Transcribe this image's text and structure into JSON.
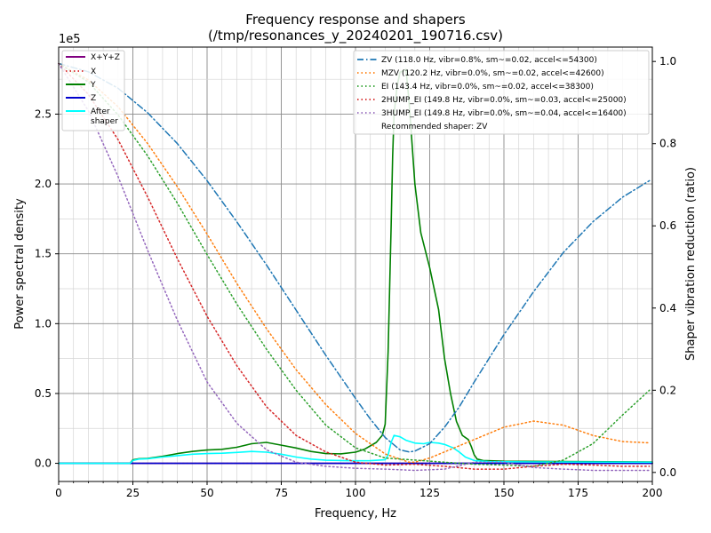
{
  "chart_data": {
    "type": "line",
    "title": "Frequency response and shapers",
    "subtitle": "(/tmp/resonances_y_20240201_190716.csv)",
    "xlabel": "Frequency, Hz",
    "ylabel": "Power spectral density",
    "y2label": "Shaper vibration reduction (ratio)",
    "y_multiplier_label": "1e5",
    "xlim": [
      0,
      200
    ],
    "ylim": [
      -0.13,
      2.98
    ],
    "y2lim": [
      -0.022,
      1.035
    ],
    "x_ticks": [
      0,
      25,
      50,
      75,
      100,
      125,
      150,
      175,
      200
    ],
    "x_tick_labels": [
      "0",
      "25",
      "50",
      "75",
      "100",
      "125",
      "150",
      "175",
      "200"
    ],
    "y_ticks": [
      0,
      0.5,
      1.0,
      1.5,
      2.0,
      2.5
    ],
    "y_tick_labels": [
      "0.0",
      "0.5",
      "1.0",
      "1.5",
      "2.0",
      "2.5"
    ],
    "y2_ticks": [
      0,
      0.2,
      0.4,
      0.6,
      0.8,
      1.0
    ],
    "y2_tick_labels": [
      "0.0",
      "0.2",
      "0.4",
      "0.6",
      "0.8",
      "1.0"
    ],
    "grid": true,
    "psd_series": [
      {
        "name": "X+Y+Z",
        "color": "#800080",
        "style": "solid",
        "points": [
          [
            0,
            0
          ],
          [
            200,
            0
          ]
        ]
      },
      {
        "name": "X",
        "color": "#d62728",
        "style": "dotted",
        "points": [
          [
            0,
            0
          ],
          [
            200,
            0
          ]
        ]
      },
      {
        "name": "Y",
        "color": "#008000",
        "style": "solid",
        "points": [
          [
            0,
            0
          ],
          [
            24,
            0
          ],
          [
            25,
            0.025
          ],
          [
            27,
            0.033
          ],
          [
            30,
            0.035
          ],
          [
            35,
            0.05
          ],
          [
            40,
            0.07
          ],
          [
            45,
            0.085
          ],
          [
            50,
            0.095
          ],
          [
            55,
            0.1
          ],
          [
            60,
            0.115
          ],
          [
            65,
            0.14
          ],
          [
            70,
            0.15
          ],
          [
            75,
            0.13
          ],
          [
            80,
            0.11
          ],
          [
            85,
            0.085
          ],
          [
            90,
            0.07
          ],
          [
            95,
            0.068
          ],
          [
            100,
            0.08
          ],
          [
            103,
            0.1
          ],
          [
            107,
            0.15
          ],
          [
            109,
            0.2
          ],
          [
            110,
            0.28
          ],
          [
            111,
            0.8
          ],
          [
            112,
            1.7
          ],
          [
            112.5,
            2.2
          ],
          [
            113,
            2.5
          ],
          [
            114,
            2.7
          ],
          [
            115,
            2.8
          ],
          [
            117,
            2.82
          ],
          [
            118,
            2.6
          ],
          [
            119,
            2.3
          ],
          [
            120,
            2.0
          ],
          [
            122,
            1.65
          ],
          [
            125,
            1.4
          ],
          [
            128,
            1.1
          ],
          [
            130,
            0.75
          ],
          [
            132,
            0.5
          ],
          [
            134,
            0.3
          ],
          [
            136,
            0.2
          ],
          [
            138,
            0.17
          ],
          [
            139,
            0.12
          ],
          [
            140,
            0.06
          ],
          [
            141,
            0.03
          ],
          [
            143,
            0.02
          ],
          [
            150,
            0.015
          ],
          [
            170,
            0.013
          ],
          [
            200,
            0.01
          ]
        ]
      },
      {
        "name": "Z",
        "color": "#0000cd",
        "style": "solid",
        "points": [
          [
            0,
            0
          ],
          [
            200,
            0
          ]
        ]
      },
      {
        "name": "After shaper",
        "color": "#00ffff",
        "style": "solid",
        "points": [
          [
            0,
            0
          ],
          [
            24,
            0
          ],
          [
            25,
            0.02
          ],
          [
            27,
            0.03
          ],
          [
            30,
            0.033
          ],
          [
            35,
            0.045
          ],
          [
            40,
            0.055
          ],
          [
            45,
            0.065
          ],
          [
            50,
            0.07
          ],
          [
            55,
            0.072
          ],
          [
            60,
            0.078
          ],
          [
            65,
            0.085
          ],
          [
            70,
            0.08
          ],
          [
            75,
            0.065
          ],
          [
            80,
            0.045
          ],
          [
            85,
            0.03
          ],
          [
            90,
            0.022
          ],
          [
            95,
            0.02
          ],
          [
            100,
            0.018
          ],
          [
            105,
            0.019
          ],
          [
            110,
            0.025
          ],
          [
            111,
            0.06
          ],
          [
            112,
            0.15
          ],
          [
            113,
            0.2
          ],
          [
            115,
            0.19
          ],
          [
            117,
            0.165
          ],
          [
            120,
            0.145
          ],
          [
            123,
            0.14
          ],
          [
            125,
            0.15
          ],
          [
            128,
            0.145
          ],
          [
            130,
            0.135
          ],
          [
            133,
            0.11
          ],
          [
            135,
            0.08
          ],
          [
            137,
            0.045
          ],
          [
            140,
            0.02
          ],
          [
            145,
            0.012
          ],
          [
            160,
            0.01
          ],
          [
            200,
            0.008
          ]
        ]
      }
    ],
    "shaper_series": [
      {
        "name": "ZV (118.0 Hz, vibr=0.8%, sm~=0.02, accel<=54300)",
        "color": "#1f77b4",
        "style": "dashdot",
        "points": [
          [
            0,
            0.995
          ],
          [
            10,
            0.975
          ],
          [
            20,
            0.935
          ],
          [
            30,
            0.875
          ],
          [
            40,
            0.8
          ],
          [
            50,
            0.71
          ],
          [
            60,
            0.61
          ],
          [
            70,
            0.505
          ],
          [
            80,
            0.395
          ],
          [
            90,
            0.285
          ],
          [
            100,
            0.18
          ],
          [
            105,
            0.13
          ],
          [
            110,
            0.085
          ],
          [
            115,
            0.055
          ],
          [
            118,
            0.05
          ],
          [
            120,
            0.052
          ],
          [
            125,
            0.07
          ],
          [
            130,
            0.11
          ],
          [
            135,
            0.16
          ],
          [
            140,
            0.22
          ],
          [
            150,
            0.335
          ],
          [
            160,
            0.44
          ],
          [
            170,
            0.535
          ],
          [
            180,
            0.61
          ],
          [
            190,
            0.67
          ],
          [
            199,
            0.71
          ]
        ]
      },
      {
        "name": "MZV (120.2 Hz, vibr=0.0%, sm~=0.02, accel<=42600)",
        "color": "#ff7f0e",
        "style": "dotted",
        "points": [
          [
            0,
            0.995
          ],
          [
            10,
            0.955
          ],
          [
            20,
            0.89
          ],
          [
            30,
            0.8
          ],
          [
            40,
            0.695
          ],
          [
            50,
            0.58
          ],
          [
            60,
            0.46
          ],
          [
            70,
            0.35
          ],
          [
            80,
            0.25
          ],
          [
            90,
            0.165
          ],
          [
            100,
            0.095
          ],
          [
            110,
            0.045
          ],
          [
            118,
            0.025
          ],
          [
            120,
            0.025
          ],
          [
            125,
            0.035
          ],
          [
            130,
            0.05
          ],
          [
            140,
            0.08
          ],
          [
            150,
            0.11
          ],
          [
            160,
            0.125
          ],
          [
            170,
            0.115
          ],
          [
            180,
            0.09
          ],
          [
            190,
            0.075
          ],
          [
            199,
            0.072
          ]
        ]
      },
      {
        "name": "EI (143.4 Hz, vibr=0.0%, sm~=0.02, accel<=38300)",
        "color": "#2ca02c",
        "style": "dotted",
        "points": [
          [
            0,
            0.995
          ],
          [
            10,
            0.95
          ],
          [
            20,
            0.87
          ],
          [
            30,
            0.77
          ],
          [
            40,
            0.655
          ],
          [
            50,
            0.53
          ],
          [
            60,
            0.41
          ],
          [
            70,
            0.3
          ],
          [
            80,
            0.2
          ],
          [
            90,
            0.115
          ],
          [
            100,
            0.06
          ],
          [
            110,
            0.035
          ],
          [
            120,
            0.03
          ],
          [
            130,
            0.025
          ],
          [
            140,
            0.02
          ],
          [
            150,
            0.018
          ],
          [
            160,
            0.015
          ],
          [
            170,
            0.03
          ],
          [
            175,
            0.05
          ],
          [
            180,
            0.07
          ],
          [
            190,
            0.14
          ],
          [
            199,
            0.2
          ]
        ]
      },
      {
        "name": "2HUMP_EI (149.8 Hz, vibr=0.0%, sm~=0.03, accel<=25000)",
        "color": "#d62728",
        "style": "dotted",
        "points": [
          [
            0,
            0.995
          ],
          [
            10,
            0.92
          ],
          [
            20,
            0.81
          ],
          [
            30,
            0.67
          ],
          [
            40,
            0.52
          ],
          [
            50,
            0.38
          ],
          [
            60,
            0.26
          ],
          [
            70,
            0.16
          ],
          [
            80,
            0.09
          ],
          [
            90,
            0.05
          ],
          [
            100,
            0.025
          ],
          [
            110,
            0.018
          ],
          [
            120,
            0.02
          ],
          [
            130,
            0.015
          ],
          [
            140,
            0.008
          ],
          [
            150,
            0.008
          ],
          [
            160,
            0.015
          ],
          [
            170,
            0.02
          ],
          [
            180,
            0.018
          ],
          [
            190,
            0.015
          ],
          [
            199,
            0.015
          ]
        ]
      },
      {
        "name": "3HUMP_EI (149.8 Hz, vibr=0.0%, sm~=0.04, accel<=16400)",
        "color": "#9467bd",
        "style": "dotted",
        "points": [
          [
            0,
            0.995
          ],
          [
            10,
            0.88
          ],
          [
            20,
            0.72
          ],
          [
            30,
            0.54
          ],
          [
            40,
            0.37
          ],
          [
            50,
            0.22
          ],
          [
            60,
            0.12
          ],
          [
            70,
            0.055
          ],
          [
            80,
            0.025
          ],
          [
            90,
            0.015
          ],
          [
            100,
            0.01
          ],
          [
            110,
            0.008
          ],
          [
            120,
            0.005
          ],
          [
            130,
            0.008
          ],
          [
            140,
            0.025
          ],
          [
            150,
            0.025
          ],
          [
            160,
            0.012
          ],
          [
            170,
            0.008
          ],
          [
            180,
            0.005
          ],
          [
            190,
            0.005
          ],
          [
            199,
            0.005
          ]
        ]
      }
    ],
    "recommendation": "Recommended shaper: ZV"
  },
  "legend_left": [
    {
      "label": "X+Y+Z",
      "color": "#800080",
      "style": "solid"
    },
    {
      "label": "X",
      "color": "#d62728",
      "style": "dotted"
    },
    {
      "label": "Y",
      "color": "#008000",
      "style": "solid"
    },
    {
      "label": "Z",
      "color": "#0000cd",
      "style": "solid"
    },
    {
      "label": "After shaper",
      "color": "#00ffff",
      "style": "solid"
    }
  ]
}
